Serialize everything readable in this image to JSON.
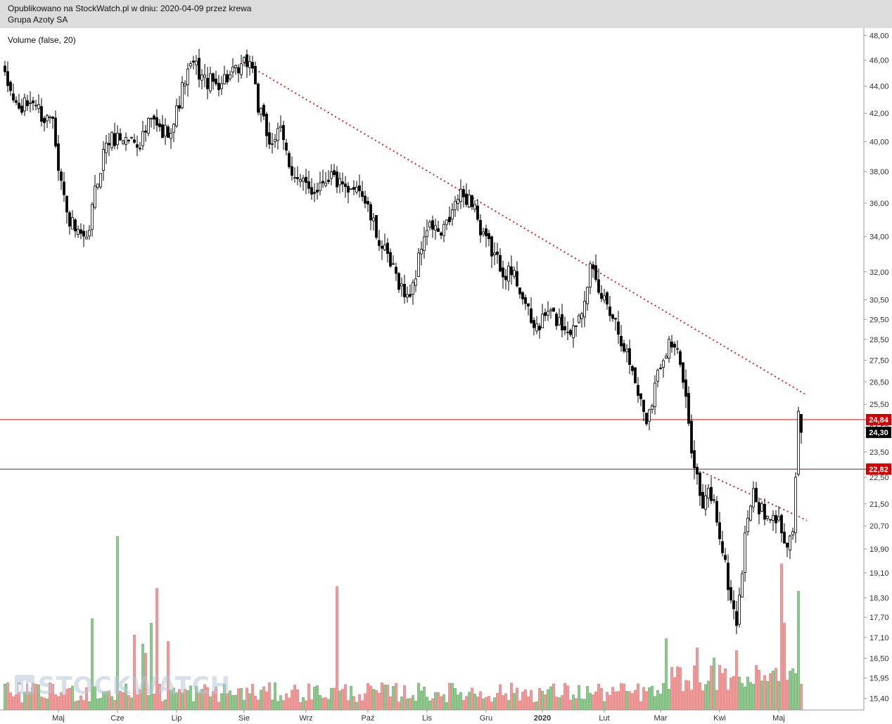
{
  "header": {
    "published": "Opublikowano na StockWatch.pl w dniu: 2020-04-09 przez krewa",
    "instrument": "Grupa Azoty SA"
  },
  "indicator_label": "Volume (false, 20)",
  "watermark": "STOCKWATCH",
  "colors": {
    "up": "#ffffff",
    "down": "#000000",
    "vol_up": "#8fc98f",
    "vol_down": "#f19a9a",
    "trend": "#e02020",
    "hline": "#d40000",
    "tag_red": "#d40000",
    "tag_black": "#000000"
  },
  "chart_data": {
    "type": "candlestick",
    "scale": "log",
    "ylim": [
      15.1,
      48.6
    ],
    "y_ticks": [
      "48,00",
      "46,00",
      "44,00",
      "42,00",
      "40,00",
      "38,00",
      "36,00",
      "34,00",
      "32,00",
      "30,50",
      "29,50",
      "28,50",
      "27,50",
      "26,50",
      "25,50",
      "24,50",
      "23,50",
      "22,50",
      "21,50",
      "20,70",
      "19,90",
      "19,10",
      "18,30",
      "17,70",
      "17,10",
      "16,50",
      "15,95",
      "15,40"
    ],
    "x_labels": [
      "Maj",
      "Cze",
      "Lip",
      "Sie",
      "Wrz",
      "Paź",
      "Lis",
      "Gru",
      "2020",
      "Lut",
      "Mar",
      "Kwi",
      "Maj"
    ],
    "x_label_index": [
      0,
      21,
      42,
      66,
      88,
      110,
      131,
      152,
      172,
      194,
      214,
      235,
      256
    ],
    "total_slots": 270,
    "horizontal_lines": [
      24.84,
      22.82
    ],
    "price_tags": [
      {
        "label": "24,84",
        "value": 24.84,
        "style": "red"
      },
      {
        "label": "24,30",
        "value": 24.3,
        "style": "black"
      },
      {
        "label": "22,82",
        "value": 22.82,
        "style": "red"
      }
    ],
    "trendlines": [
      {
        "from": [
          85,
          45.8
        ],
        "to": [
          285,
          25.9
        ]
      },
      {
        "from": [
          248,
          22.7
        ],
        "to": [
          285,
          20.9
        ]
      }
    ],
    "anchors": [
      [
        0,
        44.5
      ],
      [
        5,
        42.2
      ],
      [
        10,
        43.0
      ],
      [
        14,
        41.5
      ],
      [
        17,
        42.0
      ],
      [
        19,
        38.5
      ],
      [
        22,
        35.3
      ],
      [
        26,
        34.0
      ],
      [
        29,
        33.5
      ],
      [
        32,
        36.7
      ],
      [
        36,
        40.0
      ],
      [
        40,
        40.3
      ],
      [
        44,
        40.2
      ],
      [
        48,
        40.0
      ],
      [
        52,
        41.5
      ],
      [
        56,
        40.5
      ],
      [
        60,
        41.3
      ],
      [
        64,
        44.5
      ],
      [
        67,
        45.7
      ],
      [
        71,
        44.4
      ],
      [
        75,
        44.2
      ],
      [
        79,
        44.7
      ],
      [
        83,
        45.0
      ],
      [
        86,
        45.9
      ],
      [
        88,
        45.6
      ],
      [
        90,
        42.4
      ],
      [
        94,
        40.0
      ],
      [
        98,
        40.6
      ],
      [
        101,
        38.6
      ],
      [
        104,
        37.4
      ],
      [
        107,
        37.0
      ],
      [
        110,
        36.8
      ],
      [
        113,
        37.5
      ],
      [
        116,
        37.8
      ],
      [
        119,
        37.1
      ],
      [
        122,
        36.4
      ],
      [
        125,
        37.4
      ],
      [
        128,
        36.1
      ],
      [
        131,
        34.6
      ],
      [
        134,
        33.4
      ],
      [
        137,
        32.3
      ],
      [
        140,
        31.5
      ],
      [
        143,
        30.5
      ],
      [
        146,
        31.9
      ],
      [
        149,
        34.2
      ],
      [
        152,
        34.6
      ],
      [
        155,
        34.0
      ],
      [
        158,
        35.0
      ],
      [
        161,
        36.4
      ],
      [
        164,
        36.4
      ],
      [
        167,
        36.0
      ],
      [
        169,
        34.0
      ],
      [
        172,
        33.5
      ],
      [
        175,
        32.6
      ],
      [
        178,
        32.0
      ],
      [
        181,
        31.8
      ],
      [
        184,
        30.8
      ],
      [
        187,
        29.2
      ],
      [
        190,
        29.2
      ],
      [
        193,
        29.9
      ],
      [
        196,
        29.5
      ],
      [
        199,
        29.1
      ],
      [
        202,
        29.0
      ],
      [
        205,
        30.2
      ],
      [
        208,
        32.2
      ],
      [
        211,
        30.8
      ],
      [
        214,
        30.4
      ],
      [
        217,
        29.4
      ],
      [
        220,
        28.2
      ],
      [
        223,
        27.0
      ],
      [
        226,
        25.6
      ],
      [
        228,
        24.9
      ],
      [
        230,
        25.8
      ],
      [
        233,
        27.4
      ],
      [
        236,
        28.4
      ],
      [
        238,
        28.2
      ],
      [
        240,
        27.3
      ],
      [
        242,
        25.5
      ],
      [
        244,
        23.8
      ],
      [
        246,
        22.5
      ],
      [
        248,
        21.2
      ],
      [
        250,
        22.0
      ],
      [
        252,
        21.5
      ],
      [
        254,
        20.4
      ],
      [
        256,
        19.3
      ],
      [
        258,
        18.2
      ],
      [
        260,
        17.6
      ],
      [
        262,
        19.2
      ],
      [
        264,
        21.2
      ],
      [
        266,
        21.8
      ],
      [
        268,
        21.4
      ],
      [
        270,
        21.0
      ],
      [
        272,
        20.8
      ],
      [
        274,
        21.0
      ],
      [
        276,
        20.6
      ],
      [
        278,
        20.2
      ],
      [
        280,
        20.5
      ],
      [
        281,
        22.5
      ],
      [
        282,
        25.2
      ],
      [
        283,
        24.3
      ]
    ],
    "volume_peaks": [
      {
        "index": 31,
        "value": 100
      },
      {
        "index": 40,
        "value": 190
      },
      {
        "index": 46,
        "value": 82
      },
      {
        "index": 49,
        "value": 72
      },
      {
        "index": 50,
        "value": 62
      },
      {
        "index": 52,
        "value": 95
      },
      {
        "index": 54,
        "value": 133
      },
      {
        "index": 58,
        "value": 75
      },
      {
        "index": 118,
        "value": 135
      },
      {
        "index": 235,
        "value": 78
      },
      {
        "index": 246,
        "value": 68
      },
      {
        "index": 252,
        "value": 57
      },
      {
        "index": 260,
        "value": 65
      },
      {
        "index": 276,
        "value": 160
      },
      {
        "index": 277,
        "value": 95
      },
      {
        "index": 282,
        "value": 130
      }
    ]
  }
}
